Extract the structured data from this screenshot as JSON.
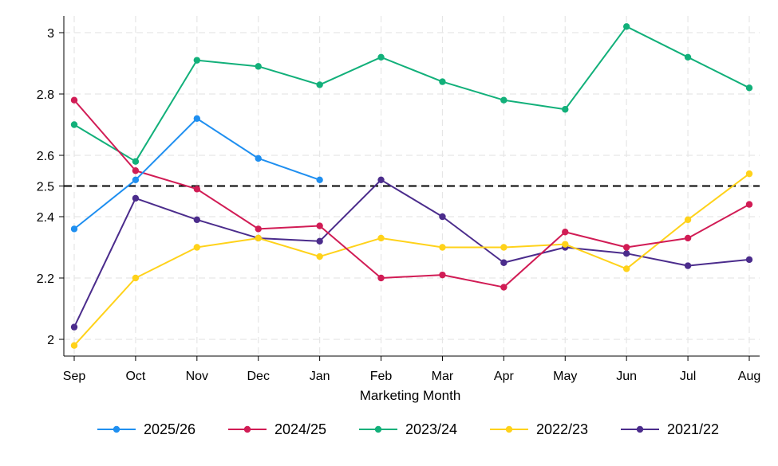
{
  "chart_data": {
    "type": "line",
    "title": "",
    "xlabel": "Marketing Month",
    "ylabel": "",
    "categories": [
      "Sep",
      "Oct",
      "Nov",
      "Dec",
      "Jan",
      "Feb",
      "Mar",
      "Apr",
      "May",
      "Jun",
      "Jul",
      "Aug"
    ],
    "ylim": [
      1.95,
      3.05
    ],
    "yticks": [
      {
        "value": 2.0,
        "label": "2"
      },
      {
        "value": 2.2,
        "label": "2.2"
      },
      {
        "value": 2.4,
        "label": "2.4"
      },
      {
        "value": 2.5,
        "label": "2.5"
      },
      {
        "value": 2.6,
        "label": "2.6"
      },
      {
        "value": 2.8,
        "label": "2.8"
      },
      {
        "value": 3.0,
        "label": "3"
      }
    ],
    "reference_line": {
      "value": 2.5,
      "style": "dashed",
      "color": "#000000"
    },
    "grid": true,
    "legend_position": "bottom",
    "series": [
      {
        "name": "2025/26",
        "color": "#1f8ff0",
        "values": [
          2.36,
          2.52,
          2.72,
          2.59,
          2.52,
          null,
          null,
          null,
          null,
          null,
          null,
          null
        ]
      },
      {
        "name": "2024/25",
        "color": "#d11c55",
        "values": [
          2.78,
          2.55,
          2.49,
          2.36,
          2.37,
          2.2,
          2.21,
          2.17,
          2.35,
          2.3,
          2.33,
          2.44
        ]
      },
      {
        "name": "2023/24",
        "color": "#12b07a",
        "values": [
          2.7,
          2.58,
          2.91,
          2.89,
          2.83,
          2.92,
          2.84,
          2.78,
          2.75,
          3.02,
          2.92,
          2.82
        ]
      },
      {
        "name": "2022/23",
        "color": "#ffd21a",
        "values": [
          1.98,
          2.2,
          2.3,
          2.33,
          2.27,
          2.33,
          2.3,
          2.3,
          2.31,
          2.23,
          2.39,
          2.54
        ]
      },
      {
        "name": "2021/22",
        "color": "#4b2c8c",
        "values": [
          2.04,
          2.46,
          2.39,
          2.33,
          2.32,
          2.52,
          2.4,
          2.25,
          2.3,
          2.28,
          2.24,
          2.26
        ]
      }
    ]
  }
}
